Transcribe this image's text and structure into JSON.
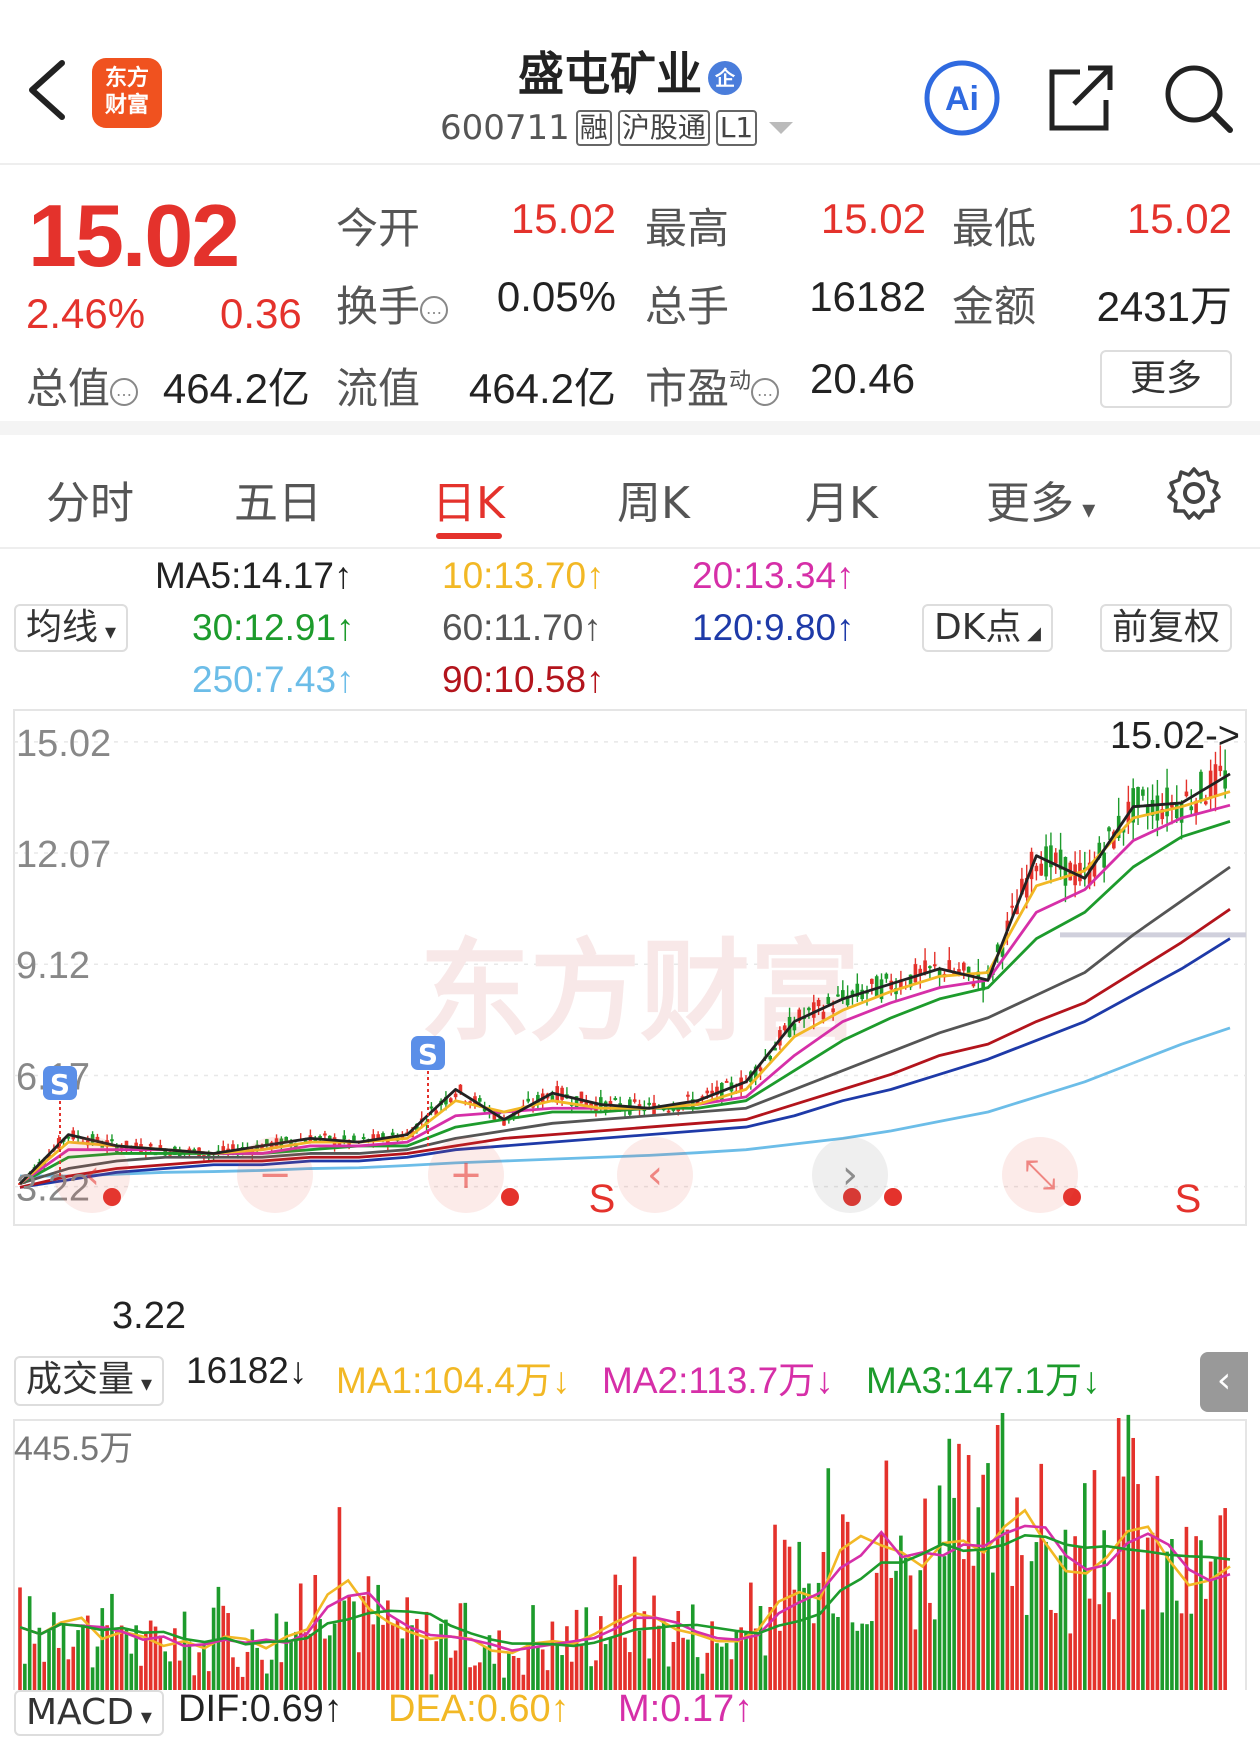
{
  "header": {
    "stock_name": "盛屯矿业",
    "badge": "企",
    "code": "600711",
    "tags": [
      "融",
      "沪股通",
      "L1"
    ],
    "logo_text": [
      "东方",
      "财富"
    ],
    "ai_label": "Ai"
  },
  "quote": {
    "price": "15.02",
    "change_pct": "2.46%",
    "change": "0.36",
    "fields": [
      {
        "label": "今开",
        "value": "15.02"
      },
      {
        "label": "最高",
        "value": "15.02"
      },
      {
        "label": "最低",
        "value": "15.02"
      },
      {
        "label": "换手",
        "value": "0.05%"
      },
      {
        "label": "总手",
        "value": "16182"
      },
      {
        "label": "金额",
        "value": "2431万"
      },
      {
        "label": "总值",
        "value": "464.2亿"
      },
      {
        "label": "流值",
        "value": "464.2亿"
      },
      {
        "label": "市盈",
        "sup": "动",
        "value": "20.46"
      }
    ],
    "more_label": "更多"
  },
  "tabs": [
    "分时",
    "五日",
    "日K",
    "周K",
    "月K",
    "更多"
  ],
  "active_tab": "日K",
  "ma_controls": {
    "junxian": "均线",
    "dk": "DK点",
    "fq": "前复权"
  },
  "ma_values": [
    {
      "label": "MA5:14.17↑",
      "color": "#222222"
    },
    {
      "label": "10:13.70↑",
      "color": "#f2b825"
    },
    {
      "label": "20:13.34↑",
      "color": "#d62fa8"
    },
    {
      "label": "30:12.91↑",
      "color": "#1d9b2c"
    },
    {
      "label": "60:11.70↑",
      "color": "#555555"
    },
    {
      "label": "120:9.80↑",
      "color": "#1e3aa8"
    },
    {
      "label": "250:7.43↑",
      "color": "#6cbde8"
    },
    {
      "label": "90:10.58↑",
      "color": "#b3141c"
    }
  ],
  "chart_data": {
    "type": "line",
    "price_ticks": [
      "15.02",
      "12.07",
      "9.12",
      "6.17",
      "3.22"
    ],
    "ylim": [
      3.22,
      15.02
    ],
    "last_label": "15.02->",
    "low_label": "3.22",
    "watermark": "东方财富",
    "x": [
      0,
      10,
      20,
      30,
      40,
      50,
      60,
      70,
      80,
      90,
      100,
      110,
      120,
      130,
      140,
      150,
      160,
      170,
      180,
      190,
      200,
      210,
      220,
      230,
      240,
      250
    ],
    "series": [
      {
        "name": "MA5",
        "color": "#222222",
        "values": [
          3.3,
          4.6,
          4.3,
          4.2,
          4.1,
          4.3,
          4.5,
          4.4,
          4.6,
          5.8,
          5.0,
          5.7,
          5.4,
          5.3,
          5.5,
          6.0,
          7.6,
          8.2,
          8.6,
          9.0,
          8.7,
          12.0,
          11.4,
          13.3,
          13.4,
          14.17
        ]
      },
      {
        "name": "MA10",
        "color": "#f2b825",
        "values": [
          3.3,
          4.4,
          4.3,
          4.2,
          4.1,
          4.2,
          4.4,
          4.4,
          4.5,
          5.5,
          5.2,
          5.5,
          5.3,
          5.3,
          5.4,
          5.8,
          7.2,
          7.9,
          8.4,
          8.8,
          8.9,
          11.2,
          11.6,
          13.0,
          13.3,
          13.7
        ]
      },
      {
        "name": "MA20",
        "color": "#d62fa8",
        "values": [
          3.3,
          4.2,
          4.2,
          4.2,
          4.1,
          4.1,
          4.3,
          4.3,
          4.4,
          5.1,
          5.2,
          5.3,
          5.3,
          5.3,
          5.4,
          5.6,
          6.7,
          7.6,
          8.1,
          8.5,
          8.7,
          10.5,
          11.1,
          12.4,
          13.0,
          13.34
        ]
      },
      {
        "name": "MA30",
        "color": "#1d9b2c",
        "values": [
          3.3,
          4.0,
          4.1,
          4.1,
          4.1,
          4.1,
          4.2,
          4.3,
          4.3,
          4.8,
          5.0,
          5.2,
          5.2,
          5.3,
          5.3,
          5.5,
          6.3,
          7.1,
          7.7,
          8.2,
          8.5,
          9.8,
          10.5,
          11.7,
          12.5,
          12.91
        ]
      },
      {
        "name": "MA60",
        "color": "#555555",
        "values": [
          3.3,
          3.7,
          3.9,
          4.0,
          4.0,
          4.0,
          4.1,
          4.1,
          4.2,
          4.5,
          4.7,
          4.9,
          5.0,
          5.1,
          5.2,
          5.3,
          5.8,
          6.3,
          6.8,
          7.3,
          7.7,
          8.3,
          8.9,
          9.9,
          10.8,
          11.7
        ]
      },
      {
        "name": "90",
        "color": "#b3141c",
        "values": [
          3.2,
          3.5,
          3.7,
          3.8,
          3.9,
          3.9,
          4.0,
          4.0,
          4.1,
          4.3,
          4.5,
          4.6,
          4.7,
          4.8,
          4.9,
          5.0,
          5.4,
          5.8,
          6.2,
          6.7,
          7.0,
          7.6,
          8.1,
          8.9,
          9.7,
          10.58
        ]
      },
      {
        "name": "120",
        "color": "#1e3aa8",
        "values": [
          3.2,
          3.4,
          3.6,
          3.7,
          3.8,
          3.8,
          3.9,
          3.9,
          4.0,
          4.2,
          4.3,
          4.4,
          4.5,
          4.6,
          4.7,
          4.8,
          5.1,
          5.5,
          5.8,
          6.2,
          6.6,
          7.1,
          7.6,
          8.3,
          9.0,
          9.8
        ]
      },
      {
        "name": "250",
        "color": "#6cbde8",
        "values": [
          3.5,
          3.5,
          3.55,
          3.6,
          3.62,
          3.65,
          3.7,
          3.72,
          3.78,
          3.85,
          3.9,
          3.95,
          4.0,
          4.05,
          4.12,
          4.2,
          4.35,
          4.5,
          4.7,
          4.95,
          5.2,
          5.6,
          6.0,
          6.5,
          7.0,
          7.43
        ]
      }
    ]
  },
  "volume": {
    "label": "成交量",
    "value": "16182↓",
    "ma1": "MA1:104.4万↓",
    "ma2": "MA2:113.7万↓",
    "ma3": "MA3:147.1万↓",
    "top_tick": "445.5万",
    "bars_wan": [
      160,
      130,
      210,
      150,
      120,
      180,
      100,
      140,
      120,
      110,
      170,
      100,
      130,
      150,
      160,
      300,
      220,
      180,
      160,
      140,
      130,
      150,
      120,
      100,
      110,
      140,
      120,
      130,
      160,
      180,
      200,
      160,
      150,
      140,
      120,
      140,
      170,
      260,
      210,
      230,
      420,
      290,
      380,
      260,
      320,
      360,
      330,
      310,
      440,
      380,
      300,
      260,
      290,
      330,
      400,
      350,
      260,
      240,
      280,
      300
    ]
  },
  "macd": {
    "label": "MACD",
    "dif": "DIF:0.69↑",
    "dea": "DEA:0.60↑",
    "m": "M:0.17↑"
  },
  "markers": {
    "signal_s": "S"
  }
}
